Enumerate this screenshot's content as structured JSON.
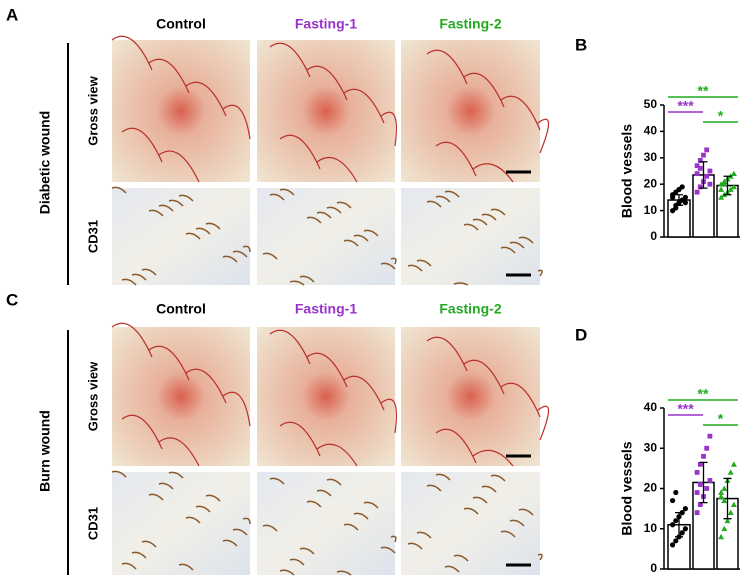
{
  "panel_a": {
    "label": "A",
    "columns": [
      "Control",
      "Fasting-1",
      "Fasting-2"
    ],
    "group_label": "Diabetic wound",
    "rows": [
      "Gross view",
      "CD31"
    ]
  },
  "panel_c": {
    "label": "C",
    "columns": [
      "Control",
      "Fasting-1",
      "Fasting-2"
    ],
    "group_label": "Burn wound",
    "rows": [
      "Gross view",
      "CD31"
    ]
  },
  "chart_data": [
    {
      "type": "bar",
      "panel_label": "B",
      "y_label": "Blood vessels",
      "categories": [
        null,
        null,
        null
      ],
      "values": [
        14,
        23.5,
        19.5
      ],
      "errors": [
        2,
        5,
        3.5
      ],
      "colors": [
        "#000000",
        "#9933cc",
        "#22aa22"
      ],
      "points": [
        [
          10,
          12,
          13,
          14,
          15,
          16,
          17,
          18,
          19,
          13,
          15,
          11
        ],
        [
          17,
          19,
          21,
          23,
          25,
          27,
          29,
          31,
          33,
          20,
          24,
          26
        ],
        [
          15,
          16,
          17,
          18,
          19,
          20,
          21,
          22,
          23,
          24,
          18,
          20
        ]
      ],
      "ylim": [
        0,
        50
      ],
      "yticks": [
        0,
        10,
        20,
        30,
        40,
        50
      ],
      "annotations": [
        {
          "text": "**",
          "color": "#22aa22"
        },
        {
          "text": "***",
          "color": "#9933cc"
        },
        {
          "text": "*",
          "color": "#22aa22"
        }
      ]
    },
    {
      "type": "bar",
      "panel_label": "D",
      "y_label": "Blood vessels",
      "categories": [
        null,
        null,
        null
      ],
      "values": [
        11,
        21.5,
        17.5
      ],
      "errors": [
        3,
        5,
        5
      ],
      "colors": [
        "#000000",
        "#9933cc",
        "#22aa22"
      ],
      "points": [
        [
          6,
          7,
          8,
          9,
          10,
          11,
          12,
          13,
          14,
          15,
          17,
          19
        ],
        [
          14,
          16,
          18,
          20,
          22,
          24,
          26,
          28,
          30,
          33,
          19,
          21
        ],
        [
          8,
          10,
          12,
          14,
          16,
          18,
          20,
          22,
          24,
          26,
          19,
          17
        ]
      ],
      "ylim": [
        0,
        40
      ],
      "yticks": [
        0,
        10,
        20,
        30,
        40
      ],
      "annotations": [
        {
          "text": "**",
          "color": "#22aa22"
        },
        {
          "text": "***",
          "color": "#9933cc"
        },
        {
          "text": "*",
          "color": "#22aa22"
        }
      ]
    }
  ]
}
